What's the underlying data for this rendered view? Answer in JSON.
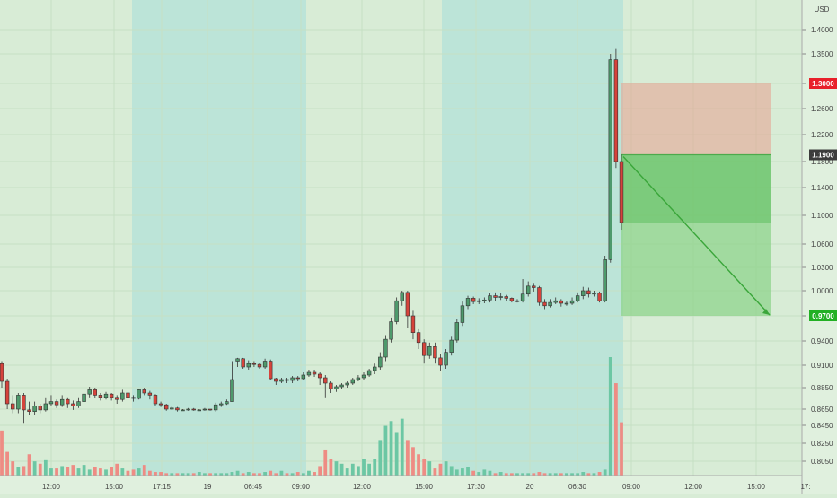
{
  "chart_data": {
    "type": "candlestick",
    "currency": "USD",
    "y_ticks": [
      "1.4000",
      "1.3500",
      "1.3000",
      "1.2600",
      "1.2200",
      "1.1800",
      "1.1400",
      "1.1000",
      "1.0600",
      "1.0300",
      "1.0000",
      "0.9700",
      "0.9400",
      "0.9100",
      "0.8850",
      "0.8650",
      "0.8450",
      "0.8250",
      "0.8050"
    ],
    "x_ticks": [
      "12:00",
      "15:00",
      "17:15",
      "19",
      "06:45",
      "09:00",
      "12:00",
      "15:00",
      "17:30",
      "20",
      "06:30",
      "09:00",
      "12:00",
      "15:00",
      "17:"
    ],
    "price_tags": [
      {
        "label": "1.3000",
        "value": 1.3,
        "color": "#e8202a"
      },
      {
        "label": "1.1900",
        "value": 1.19,
        "color": "#3c3c3c"
      },
      {
        "label": "0.9700",
        "value": 0.97,
        "color": "#22b024"
      }
    ],
    "position": {
      "stop": 1.3,
      "entry": 1.19,
      "target": 0.97
    },
    "colors": {
      "up": "#4e9a6c",
      "down": "#d6433b",
      "vol_up": "#6cc7a4",
      "vol_down": "#ee8c84",
      "session": "#bce4d8"
    },
    "candles": [
      [
        0.912,
        0.892,
        0.915,
        0.885
      ],
      [
        0.892,
        0.87,
        0.895,
        0.865
      ],
      [
        0.87,
        0.865,
        0.878,
        0.86
      ],
      [
        0.865,
        0.878,
        0.88,
        0.86
      ],
      [
        0.878,
        0.864,
        0.88,
        0.848
      ],
      [
        0.864,
        0.862,
        0.872,
        0.858
      ],
      [
        0.862,
        0.868,
        0.872,
        0.858
      ],
      [
        0.868,
        0.864,
        0.87,
        0.86
      ],
      [
        0.864,
        0.87,
        0.876,
        0.862
      ],
      [
        0.87,
        0.872,
        0.878,
        0.868
      ],
      [
        0.872,
        0.869,
        0.874,
        0.866
      ],
      [
        0.869,
        0.874,
        0.878,
        0.867
      ],
      [
        0.874,
        0.87,
        0.876,
        0.866
      ],
      [
        0.87,
        0.868,
        0.873,
        0.864
      ],
      [
        0.868,
        0.872,
        0.876,
        0.866
      ],
      [
        0.872,
        0.879,
        0.882,
        0.87
      ],
      [
        0.879,
        0.883,
        0.886,
        0.876
      ],
      [
        0.883,
        0.878,
        0.885,
        0.875
      ],
      [
        0.878,
        0.876,
        0.88,
        0.873
      ],
      [
        0.876,
        0.879,
        0.881,
        0.874
      ],
      [
        0.879,
        0.876,
        0.88,
        0.873
      ],
      [
        0.876,
        0.874,
        0.878,
        0.87
      ],
      [
        0.874,
        0.88,
        0.883,
        0.872
      ],
      [
        0.88,
        0.876,
        0.883,
        0.874
      ],
      [
        0.876,
        0.875,
        0.878,
        0.872
      ],
      [
        0.875,
        0.883,
        0.884,
        0.874
      ],
      [
        0.883,
        0.88,
        0.885,
        0.878
      ],
      [
        0.88,
        0.878,
        0.882,
        0.874
      ],
      [
        0.878,
        0.87,
        0.879,
        0.868
      ],
      [
        0.87,
        0.869,
        0.872,
        0.867
      ],
      [
        0.869,
        0.865,
        0.87,
        0.863
      ],
      [
        0.865,
        0.866,
        0.868,
        0.864
      ],
      [
        0.866,
        0.864,
        0.867,
        0.862
      ],
      [
        0.864,
        0.864,
        0.865,
        0.863
      ],
      [
        0.864,
        0.865,
        0.866,
        0.863
      ],
      [
        0.865,
        0.864,
        0.866,
        0.863
      ],
      [
        0.864,
        0.864,
        0.865,
        0.863
      ],
      [
        0.864,
        0.865,
        0.866,
        0.863
      ],
      [
        0.865,
        0.864,
        0.865,
        0.863
      ],
      [
        0.864,
        0.869,
        0.871,
        0.862
      ],
      [
        0.869,
        0.87,
        0.872,
        0.867
      ],
      [
        0.87,
        0.872,
        0.874,
        0.869
      ],
      [
        0.872,
        0.894,
        0.915,
        0.89
      ],
      [
        0.915,
        0.918,
        0.919,
        0.908
      ],
      [
        0.918,
        0.908,
        0.919,
        0.906
      ],
      [
        0.908,
        0.912,
        0.916,
        0.905
      ],
      [
        0.912,
        0.911,
        0.915,
        0.908
      ],
      [
        0.911,
        0.908,
        0.913,
        0.906
      ],
      [
        0.908,
        0.915,
        0.918,
        0.906
      ],
      [
        0.915,
        0.895,
        0.917,
        0.893
      ],
      [
        0.895,
        0.892,
        0.896,
        0.888
      ],
      [
        0.892,
        0.894,
        0.896,
        0.89
      ],
      [
        0.894,
        0.893,
        0.896,
        0.89
      ],
      [
        0.893,
        0.896,
        0.898,
        0.89
      ],
      [
        0.896,
        0.895,
        0.898,
        0.892
      ],
      [
        0.895,
        0.899,
        0.902,
        0.893
      ],
      [
        0.899,
        0.902,
        0.905,
        0.897
      ],
      [
        0.902,
        0.9,
        0.905,
        0.897
      ],
      [
        0.9,
        0.896,
        0.902,
        0.888
      ],
      [
        0.896,
        0.89,
        0.899,
        0.876
      ],
      [
        0.89,
        0.884,
        0.892,
        0.88
      ],
      [
        0.884,
        0.886,
        0.888,
        0.881
      ],
      [
        0.886,
        0.888,
        0.89,
        0.884
      ],
      [
        0.888,
        0.89,
        0.892,
        0.885
      ],
      [
        0.89,
        0.894,
        0.896,
        0.888
      ],
      [
        0.894,
        0.896,
        0.899,
        0.892
      ],
      [
        0.896,
        0.899,
        0.902,
        0.893
      ],
      [
        0.899,
        0.904,
        0.906,
        0.897
      ],
      [
        0.904,
        0.908,
        0.912,
        0.9
      ],
      [
        0.908,
        0.92,
        0.926,
        0.905
      ],
      [
        0.92,
        0.942,
        0.947,
        0.915
      ],
      [
        0.942,
        0.963,
        0.968,
        0.938
      ],
      [
        0.963,
        0.988,
        0.992,
        0.96
      ],
      [
        0.988,
        0.998,
        1.0,
        0.982
      ],
      [
        0.998,
        0.97,
        1.0,
        0.956
      ],
      [
        0.97,
        0.95,
        0.976,
        0.942
      ],
      [
        0.95,
        0.938,
        0.954,
        0.93
      ],
      [
        0.938,
        0.922,
        0.942,
        0.912
      ],
      [
        0.922,
        0.933,
        0.938,
        0.918
      ],
      [
        0.933,
        0.919,
        0.938,
        0.912
      ],
      [
        0.919,
        0.91,
        0.924,
        0.904
      ],
      [
        0.91,
        0.926,
        0.93,
        0.906
      ],
      [
        0.926,
        0.941,
        0.945,
        0.922
      ],
      [
        0.941,
        0.962,
        0.966,
        0.938
      ],
      [
        0.962,
        0.982,
        0.987,
        0.958
      ],
      [
        0.982,
        0.991,
        0.994,
        0.978
      ],
      [
        0.991,
        0.987,
        0.993,
        0.984
      ],
      [
        0.987,
        0.988,
        0.991,
        0.984
      ],
      [
        0.988,
        0.989,
        0.992,
        0.985
      ],
      [
        0.989,
        0.994,
        0.997,
        0.986
      ],
      [
        0.994,
        0.992,
        0.998,
        0.988
      ],
      [
        0.992,
        0.993,
        0.997,
        0.989
      ],
      [
        0.993,
        0.991,
        0.995,
        0.988
      ],
      [
        0.991,
        0.988,
        0.992,
        0.986
      ],
      [
        0.988,
        0.988,
        0.99,
        0.986
      ],
      [
        0.988,
        0.996,
        1.015,
        0.986
      ],
      [
        0.996,
        1.006,
        1.012,
        0.993
      ],
      [
        1.006,
        1.004,
        1.01,
        0.999
      ],
      [
        1.004,
        0.986,
        1.006,
        0.982
      ],
      [
        0.986,
        0.982,
        0.99,
        0.978
      ],
      [
        0.982,
        0.986,
        0.99,
        0.98
      ],
      [
        0.986,
        0.988,
        0.992,
        0.984
      ],
      [
        0.988,
        0.985,
        0.99,
        0.981
      ],
      [
        0.985,
        0.985,
        0.988,
        0.982
      ],
      [
        0.985,
        0.988,
        0.992,
        0.983
      ],
      [
        0.988,
        0.994,
        0.998,
        0.986
      ],
      [
        0.994,
        1.0,
        1.005,
        0.99
      ],
      [
        1.0,
        0.996,
        1.004,
        0.992
      ],
      [
        0.996,
        0.997,
        1.0,
        0.993
      ],
      [
        0.997,
        0.988,
        0.999,
        0.986
      ],
      [
        0.988,
        1.04,
        1.045,
        0.986
      ],
      [
        1.04,
        1.34,
        1.35,
        1.036
      ],
      [
        1.34,
        1.18,
        1.36,
        1.17
      ],
      [
        1.18,
        1.09,
        1.19,
        1.08
      ]
    ],
    "volumes": [
      0.38,
      0.2,
      0.12,
      0.07,
      0.08,
      0.18,
      0.12,
      0.1,
      0.13,
      0.06,
      0.06,
      0.08,
      0.07,
      0.09,
      0.06,
      0.09,
      0.05,
      0.07,
      0.06,
      0.05,
      0.07,
      0.1,
      0.06,
      0.04,
      0.05,
      0.06,
      0.09,
      0.04,
      0.03,
      0.03,
      0.02,
      0.02,
      0.02,
      0.02,
      0.02,
      0.02,
      0.03,
      0.02,
      0.02,
      0.02,
      0.02,
      0.02,
      0.03,
      0.04,
      0.02,
      0.03,
      0.02,
      0.02,
      0.03,
      0.04,
      0.02,
      0.04,
      0.02,
      0.02,
      0.03,
      0.02,
      0.04,
      0.03,
      0.08,
      0.22,
      0.14,
      0.12,
      0.1,
      0.06,
      0.1,
      0.08,
      0.14,
      0.1,
      0.14,
      0.3,
      0.42,
      0.46,
      0.36,
      0.48,
      0.3,
      0.24,
      0.18,
      0.14,
      0.12,
      0.06,
      0.1,
      0.12,
      0.08,
      0.05,
      0.06,
      0.07,
      0.04,
      0.03,
      0.05,
      0.04,
      0.02,
      0.03,
      0.02,
      0.02,
      0.02,
      0.02,
      0.02,
      0.02,
      0.03,
      0.02,
      0.02,
      0.02,
      0.02,
      0.02,
      0.02,
      0.02,
      0.03,
      0.02,
      0.02,
      0.03,
      0.05,
      1.0,
      0.78,
      0.45
    ]
  }
}
